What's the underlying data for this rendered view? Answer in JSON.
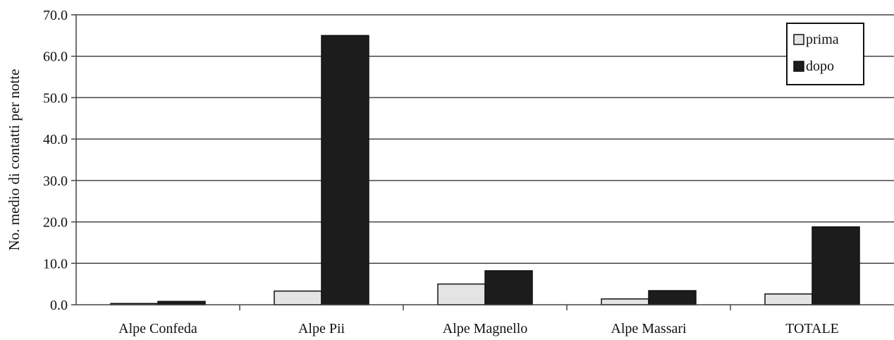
{
  "chart_data": {
    "type": "bar",
    "title": "",
    "xlabel": "",
    "ylabel": "No. medio di contatti per notte",
    "ylim": [
      0,
      70
    ],
    "yticks": [
      "0.0",
      "10.0",
      "20.0",
      "30.0",
      "40.0",
      "50.0",
      "60.0",
      "70.0"
    ],
    "categories": [
      "Alpe Confeda",
      "Alpe Pii",
      "Alpe Magnello",
      "Alpe Massari",
      "TOTALE"
    ],
    "series": [
      {
        "name": "prima",
        "values": [
          0.3,
          3.3,
          5.0,
          1.4,
          2.6
        ],
        "color": "#e4e4e4"
      },
      {
        "name": "dopo",
        "values": [
          0.8,
          65.0,
          8.2,
          3.4,
          18.8
        ],
        "color": "#1c1c1c"
      }
    ],
    "grid": true,
    "legend_position": "top-right"
  }
}
